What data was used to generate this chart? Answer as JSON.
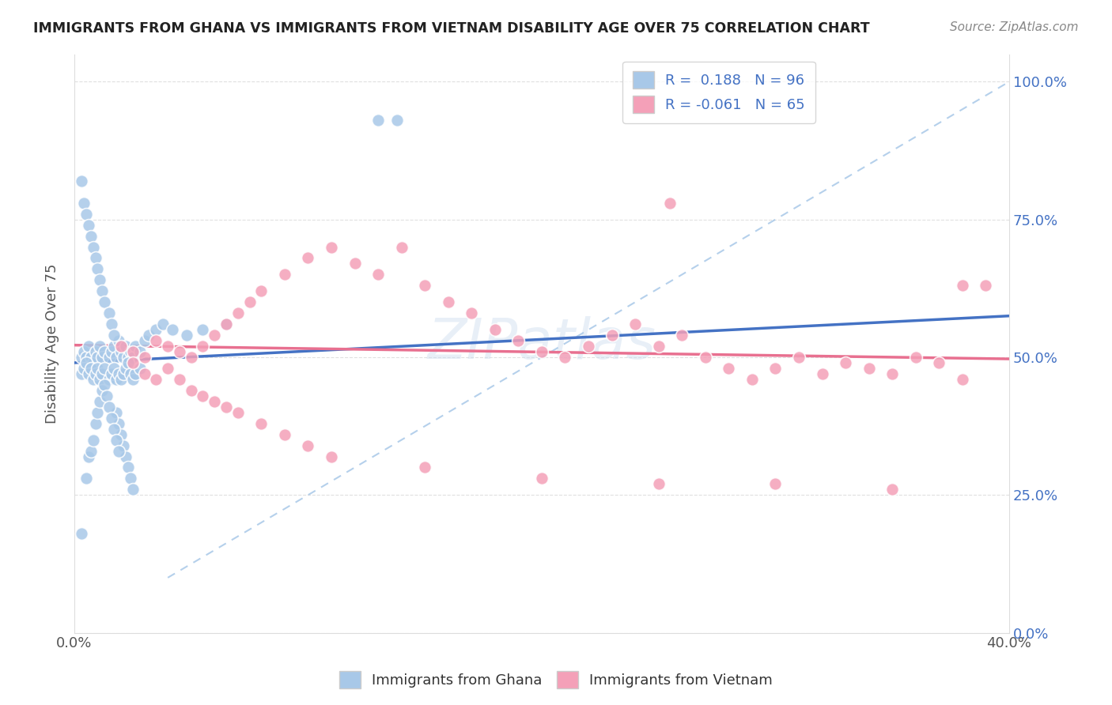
{
  "title": "IMMIGRANTS FROM GHANA VS IMMIGRANTS FROM VIETNAM DISABILITY AGE OVER 75 CORRELATION CHART",
  "source": "Source: ZipAtlas.com",
  "ylabel": "Disability Age Over 75",
  "ghana_color": "#a8c8e8",
  "vietnam_color": "#f4a0b8",
  "ghana_line_color": "#4472c4",
  "vietnam_line_color": "#e87090",
  "dashed_line_color": "#a8c8e8",
  "watermark": "ZIPatlas",
  "ghana_R": 0.188,
  "vietnam_R": -0.061,
  "ghana_N": 96,
  "vietnam_N": 65,
  "ghana_x": [
    0.003,
    0.004,
    0.005,
    0.006,
    0.007,
    0.008,
    0.009,
    0.01,
    0.011,
    0.012,
    0.013,
    0.015,
    0.016,
    0.017,
    0.018,
    0.019,
    0.02,
    0.021,
    0.022,
    0.023,
    0.024,
    0.025,
    0.026,
    0.028,
    0.03,
    0.032,
    0.035,
    0.038,
    0.042,
    0.048,
    0.055,
    0.065,
    0.003,
    0.004,
    0.005,
    0.006,
    0.007,
    0.008,
    0.009,
    0.01,
    0.011,
    0.012,
    0.013,
    0.015,
    0.016,
    0.017,
    0.018,
    0.019,
    0.02,
    0.021,
    0.022,
    0.023,
    0.024,
    0.025,
    0.026,
    0.028,
    0.13,
    0.138,
    0.003,
    0.004,
    0.005,
    0.006,
    0.007,
    0.008,
    0.009,
    0.01,
    0.011,
    0.012,
    0.013,
    0.015,
    0.016,
    0.017,
    0.018,
    0.019,
    0.02,
    0.021,
    0.022,
    0.023,
    0.024,
    0.025,
    0.003,
    0.005,
    0.006,
    0.007,
    0.008,
    0.009,
    0.01,
    0.011,
    0.012,
    0.013,
    0.014,
    0.015,
    0.016,
    0.017,
    0.018,
    0.019
  ],
  "ghana_y": [
    0.5,
    0.51,
    0.5,
    0.52,
    0.5,
    0.49,
    0.51,
    0.5,
    0.52,
    0.5,
    0.51,
    0.5,
    0.51,
    0.52,
    0.5,
    0.53,
    0.51,
    0.5,
    0.52,
    0.5,
    0.51,
    0.5,
    0.52,
    0.51,
    0.53,
    0.54,
    0.55,
    0.56,
    0.55,
    0.54,
    0.55,
    0.56,
    0.47,
    0.48,
    0.49,
    0.47,
    0.48,
    0.46,
    0.47,
    0.48,
    0.46,
    0.47,
    0.48,
    0.46,
    0.47,
    0.48,
    0.46,
    0.47,
    0.46,
    0.47,
    0.48,
    0.49,
    0.47,
    0.46,
    0.47,
    0.48,
    0.93,
    0.93,
    0.82,
    0.78,
    0.76,
    0.74,
    0.72,
    0.7,
    0.68,
    0.66,
    0.64,
    0.62,
    0.6,
    0.58,
    0.56,
    0.54,
    0.4,
    0.38,
    0.36,
    0.34,
    0.32,
    0.3,
    0.28,
    0.26,
    0.18,
    0.28,
    0.32,
    0.33,
    0.35,
    0.38,
    0.4,
    0.42,
    0.44,
    0.45,
    0.43,
    0.41,
    0.39,
    0.37,
    0.35,
    0.33
  ],
  "vietnam_x": [
    0.02,
    0.025,
    0.03,
    0.035,
    0.04,
    0.045,
    0.05,
    0.055,
    0.06,
    0.065,
    0.07,
    0.075,
    0.08,
    0.09,
    0.1,
    0.11,
    0.12,
    0.13,
    0.14,
    0.15,
    0.16,
    0.17,
    0.18,
    0.19,
    0.2,
    0.21,
    0.22,
    0.23,
    0.24,
    0.25,
    0.26,
    0.27,
    0.28,
    0.29,
    0.3,
    0.31,
    0.32,
    0.33,
    0.34,
    0.35,
    0.36,
    0.37,
    0.38,
    0.39,
    0.025,
    0.03,
    0.035,
    0.04,
    0.045,
    0.05,
    0.055,
    0.06,
    0.065,
    0.07,
    0.08,
    0.09,
    0.1,
    0.11,
    0.15,
    0.2,
    0.25,
    0.3,
    0.35,
    0.255,
    0.38
  ],
  "vietnam_y": [
    0.52,
    0.51,
    0.5,
    0.53,
    0.52,
    0.51,
    0.5,
    0.52,
    0.54,
    0.56,
    0.58,
    0.6,
    0.62,
    0.65,
    0.68,
    0.7,
    0.67,
    0.65,
    0.7,
    0.63,
    0.6,
    0.58,
    0.55,
    0.53,
    0.51,
    0.5,
    0.52,
    0.54,
    0.56,
    0.52,
    0.54,
    0.5,
    0.48,
    0.46,
    0.48,
    0.5,
    0.47,
    0.49,
    0.48,
    0.47,
    0.5,
    0.49,
    0.46,
    0.63,
    0.49,
    0.47,
    0.46,
    0.48,
    0.46,
    0.44,
    0.43,
    0.42,
    0.41,
    0.4,
    0.38,
    0.36,
    0.34,
    0.32,
    0.3,
    0.28,
    0.27,
    0.27,
    0.26,
    0.78,
    0.63
  ],
  "xlim": [
    0.0,
    0.4
  ],
  "ylim": [
    0.0,
    1.05
  ],
  "x_ticks": [
    0.0,
    0.05,
    0.1,
    0.15,
    0.2,
    0.25,
    0.3,
    0.35,
    0.4
  ],
  "y_ticks": [
    0.0,
    0.25,
    0.5,
    0.75,
    1.0
  ],
  "y_tick_labels": [
    "0.0%",
    "25.0%",
    "50.0%",
    "75.0%",
    "100.0%"
  ],
  "ghana_line_x": [
    0.0,
    0.4
  ],
  "ghana_line_y": [
    0.49,
    0.575
  ],
  "vietnam_line_x": [
    0.0,
    0.4
  ],
  "vietnam_line_y": [
    0.522,
    0.497
  ],
  "dashed_line_x": [
    0.04,
    0.4
  ],
  "dashed_line_y": [
    0.1,
    1.0
  ]
}
